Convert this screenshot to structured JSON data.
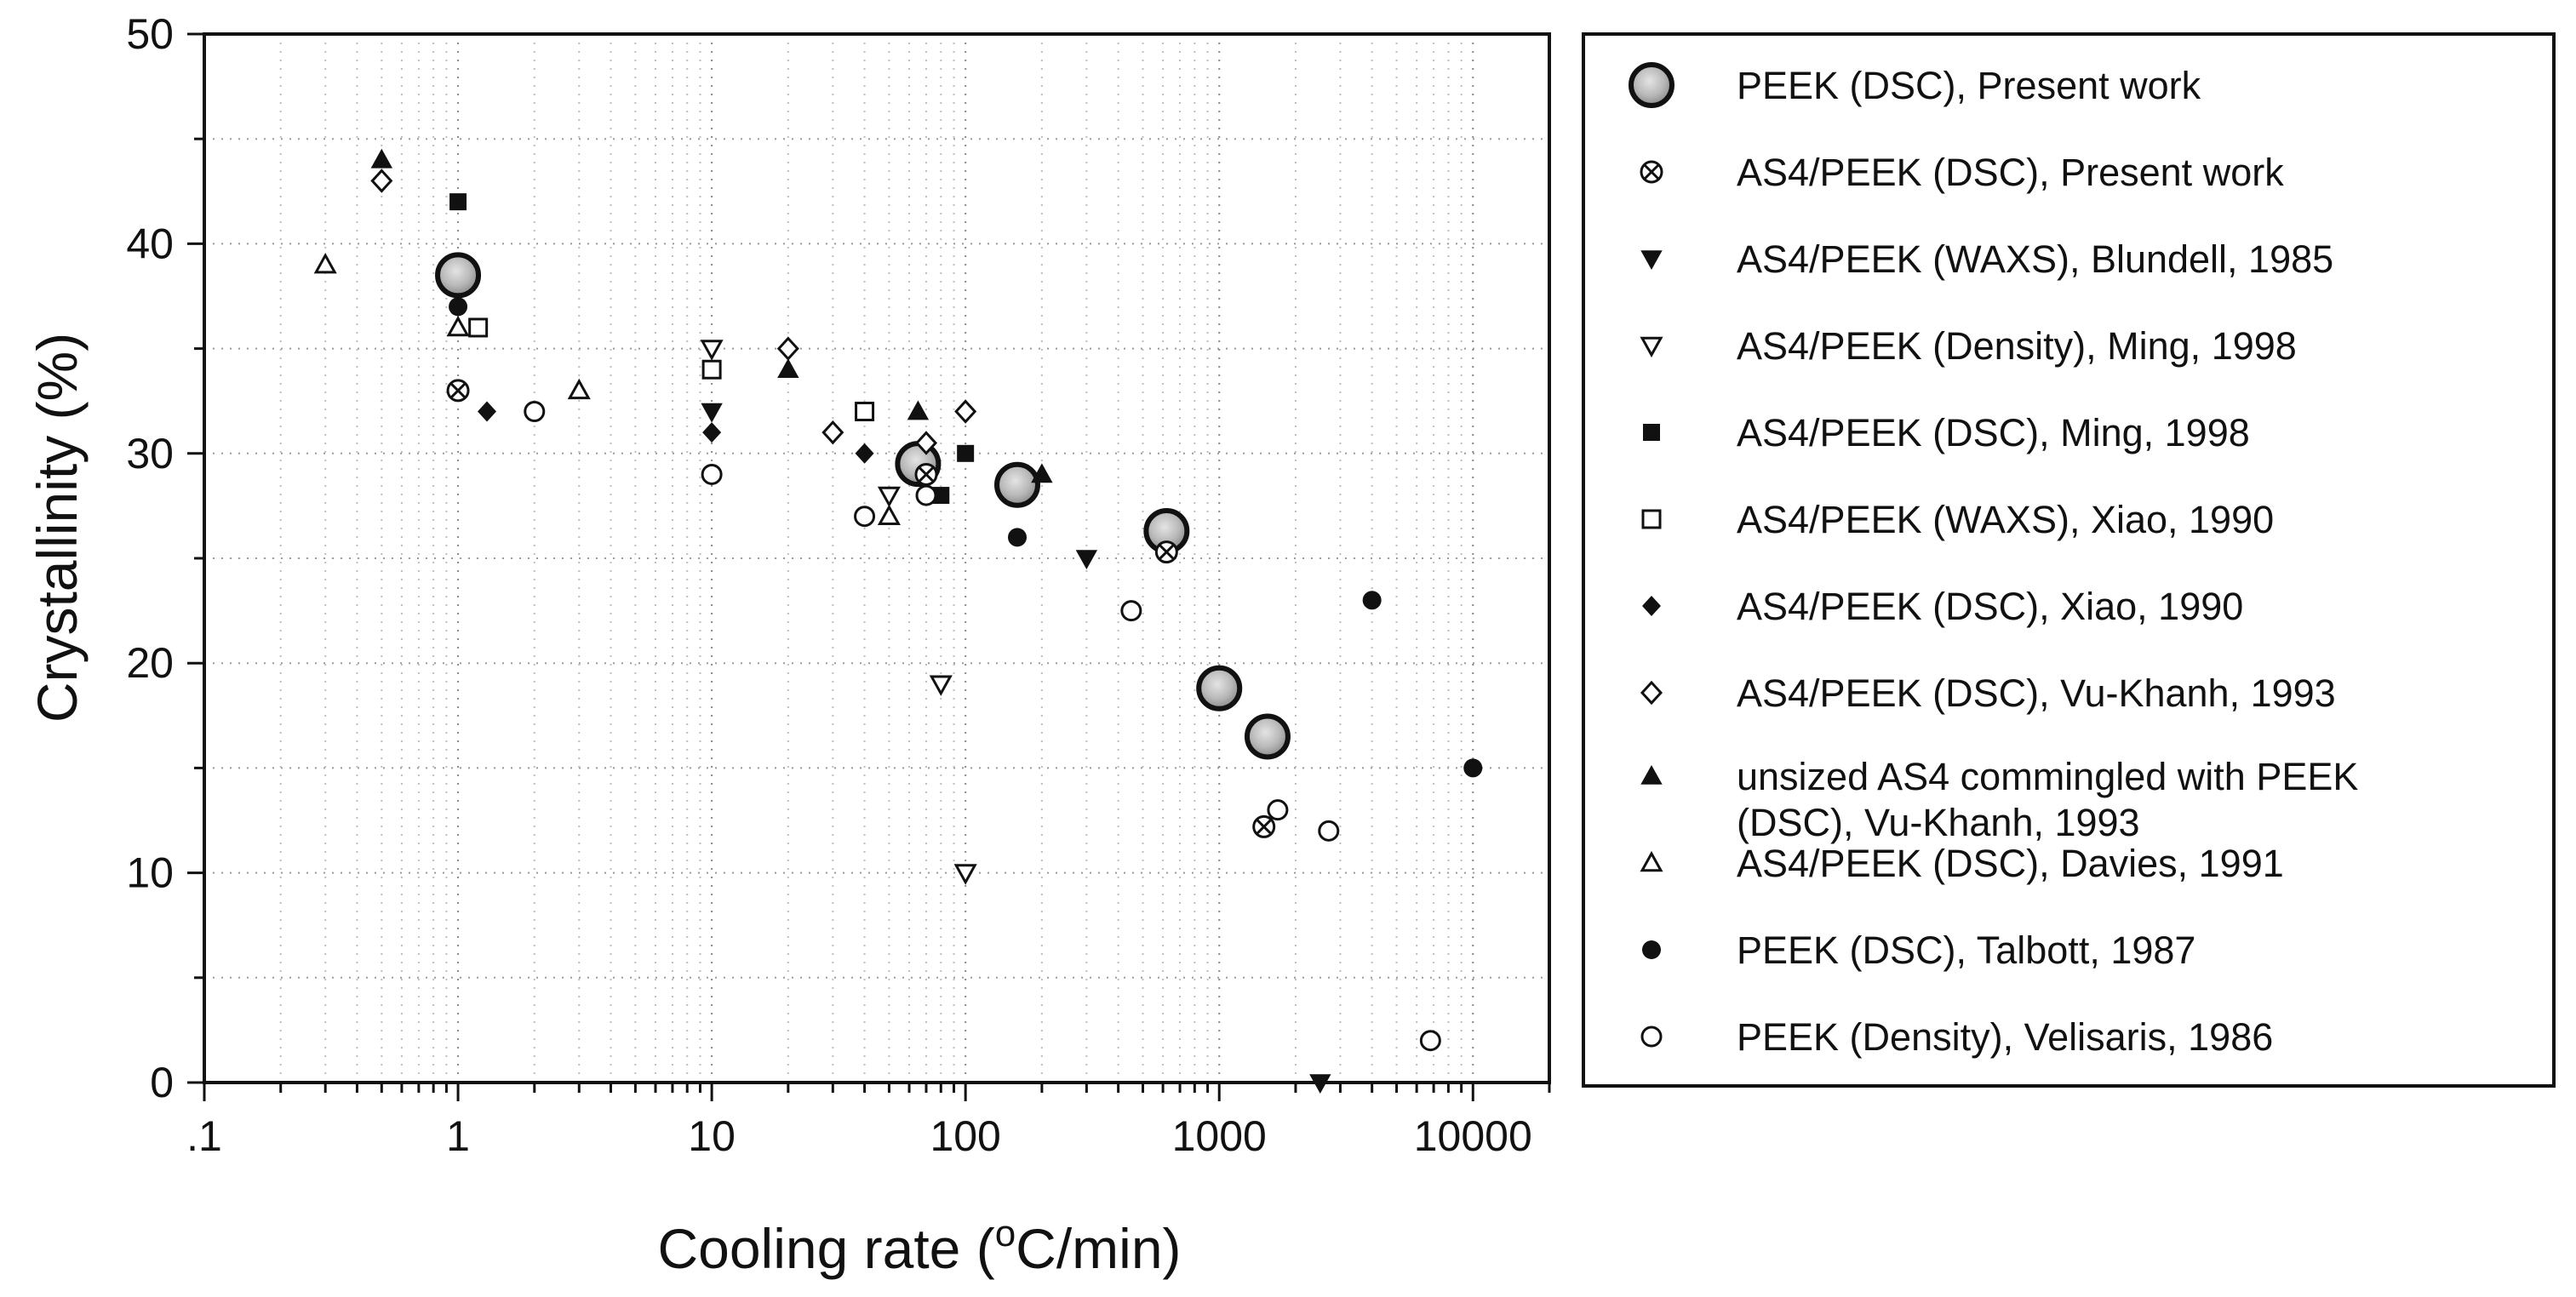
{
  "chart_data": {
    "type": "scatter",
    "xscale": "log",
    "xlim": [
      0.1,
      20000
    ],
    "ylim": [
      0,
      50
    ],
    "xticks": [
      ".1",
      "1",
      "10",
      "100",
      "1000",
      "10000"
    ],
    "yticks": [
      "0",
      "10",
      "20",
      "30",
      "40",
      "50"
    ],
    "xlabel_main": "Cooling rate (",
    "xlabel_sup": "o",
    "xlabel_tail": "C/min)",
    "ylabel": "Crystallinity (%)",
    "grid": "dotted",
    "legend_position": "right",
    "series": [
      {
        "name": "PEEK (DSC), Present work",
        "marker": "big-circle-gray",
        "points": [
          [
            1,
            38.5
          ],
          [
            65,
            29.5
          ],
          [
            160,
            28.5
          ],
          [
            620,
            26.3
          ],
          [
            1000,
            18.8
          ],
          [
            1550,
            16.5
          ]
        ]
      },
      {
        "name": "AS4/PEEK (DSC), Present work",
        "marker": "circle-cross",
        "points": [
          [
            1,
            33
          ],
          [
            70,
            29
          ],
          [
            620,
            25.3
          ],
          [
            1500,
            12.2
          ]
        ]
      },
      {
        "name": "AS4/PEEK (WAXS), Blundell, 1985",
        "marker": "triangle-down-filled",
        "points": [
          [
            10,
            32
          ],
          [
            300,
            25
          ],
          [
            2500,
            0
          ]
        ]
      },
      {
        "name": "AS4/PEEK (Density), Ming, 1998",
        "marker": "triangle-down-open",
        "points": [
          [
            10,
            35
          ],
          [
            50,
            28
          ],
          [
            80,
            19
          ],
          [
            100,
            10
          ]
        ]
      },
      {
        "name": "AS4/PEEK (DSC), Ming, 1998",
        "marker": "square-filled",
        "points": [
          [
            1,
            42
          ],
          [
            80,
            28
          ],
          [
            100,
            30
          ]
        ]
      },
      {
        "name": "AS4/PEEK (WAXS), Xiao, 1990",
        "marker": "square-open",
        "points": [
          [
            1.2,
            36
          ],
          [
            10,
            34
          ],
          [
            40,
            32
          ]
        ]
      },
      {
        "name": "AS4/PEEK (DSC), Xiao, 1990",
        "marker": "diamond-filled",
        "points": [
          [
            1.3,
            32
          ],
          [
            10,
            31
          ],
          [
            40,
            30
          ]
        ]
      },
      {
        "name": "AS4/PEEK (DSC), Vu-Khanh, 1993",
        "marker": "diamond-open",
        "points": [
          [
            0.5,
            43
          ],
          [
            20,
            35
          ],
          [
            30,
            31
          ],
          [
            70,
            30.5
          ],
          [
            100,
            32
          ]
        ]
      },
      {
        "name": "unsized AS4 commingled with PEEK",
        "name2": "(DSC), Vu-Khanh, 1993",
        "marker": "triangle-up-filled",
        "points": [
          [
            0.5,
            44
          ],
          [
            20,
            34
          ],
          [
            65,
            32
          ],
          [
            200,
            29
          ]
        ]
      },
      {
        "name": "AS4/PEEK (DSC), Davies, 1991",
        "marker": "triangle-up-open",
        "points": [
          [
            0.3,
            39
          ],
          [
            1,
            36
          ],
          [
            3,
            33
          ],
          [
            50,
            27
          ]
        ]
      },
      {
        "name": "PEEK (DSC), Talbott, 1987",
        "marker": "circle-filled",
        "points": [
          [
            1,
            37
          ],
          [
            160,
            26
          ],
          [
            4000,
            23
          ],
          [
            10000,
            15
          ]
        ]
      },
      {
        "name": "PEEK (Density), Velisaris, 1986",
        "marker": "circle-open",
        "points": [
          [
            2,
            32
          ],
          [
            10,
            29
          ],
          [
            40,
            27
          ],
          [
            70,
            28
          ],
          [
            450,
            22.5
          ],
          [
            1700,
            13
          ],
          [
            2700,
            12
          ],
          [
            6800,
            2
          ]
        ]
      }
    ]
  }
}
